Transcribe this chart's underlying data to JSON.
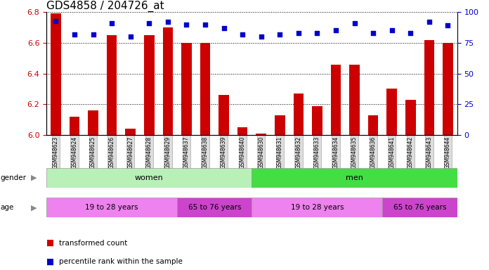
{
  "title": "GDS4858 / 204726_at",
  "samples": [
    "GSM948623",
    "GSM948624",
    "GSM948625",
    "GSM948626",
    "GSM948627",
    "GSM948628",
    "GSM948629",
    "GSM948637",
    "GSM948638",
    "GSM948639",
    "GSM948640",
    "GSM948630",
    "GSM948631",
    "GSM948632",
    "GSM948633",
    "GSM948634",
    "GSM948635",
    "GSM948636",
    "GSM948641",
    "GSM948642",
    "GSM948643",
    "GSM948644"
  ],
  "transformed_count": [
    6.79,
    6.12,
    6.16,
    6.65,
    6.04,
    6.65,
    6.7,
    6.6,
    6.6,
    6.26,
    6.05,
    6.01,
    6.13,
    6.27,
    6.19,
    6.46,
    6.46,
    6.13,
    6.3,
    6.23,
    6.62,
    6.6
  ],
  "percentile": [
    93,
    82,
    82,
    91,
    80,
    91,
    92,
    90,
    90,
    87,
    82,
    80,
    82,
    83,
    83,
    85,
    91,
    83,
    85,
    83,
    92,
    89
  ],
  "ylim_left": [
    6.0,
    6.8
  ],
  "ylim_right": [
    0,
    100
  ],
  "yticks_left": [
    6.0,
    6.2,
    6.4,
    6.6,
    6.8
  ],
  "yticks_right": [
    0,
    25,
    50,
    75,
    100
  ],
  "bar_color": "#cc0000",
  "dot_color": "#0000cc",
  "background_color": "#ffffff",
  "title_fontsize": 11,
  "gender_groups": [
    {
      "label": "women",
      "start": 0,
      "end": 10,
      "color": "#b8f0b8"
    },
    {
      "label": "men",
      "start": 11,
      "end": 21,
      "color": "#44dd44"
    }
  ],
  "age_groups": [
    {
      "label": "19 to 28 years",
      "start": 0,
      "end": 6,
      "color": "#ee82ee"
    },
    {
      "label": "65 to 76 years",
      "start": 7,
      "end": 10,
      "color": "#cc44cc"
    },
    {
      "label": "19 to 28 years",
      "start": 11,
      "end": 17,
      "color": "#ee82ee"
    },
    {
      "label": "65 to 76 years",
      "start": 18,
      "end": 21,
      "color": "#cc44cc"
    }
  ],
  "left_axis_color": "#cc0000",
  "right_axis_color": "#0000cc",
  "legend_items": [
    {
      "color": "#cc0000",
      "label": "transformed count"
    },
    {
      "color": "#0000cc",
      "label": "percentile rank within the sample"
    }
  ]
}
